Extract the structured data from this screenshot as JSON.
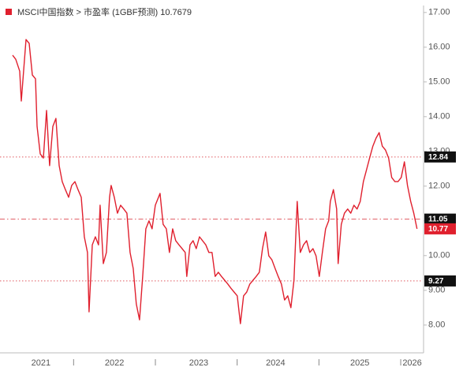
{
  "chart_data": {
    "type": "line",
    "x": [
      2021.254,
      2021.293,
      2021.341,
      2021.36,
      2021.418,
      2021.457,
      2021.495,
      2021.534,
      2021.553,
      2021.592,
      2021.63,
      2021.669,
      2021.707,
      2021.746,
      2021.784,
      2021.823,
      2021.861,
      2021.9,
      2021.939,
      2021.977,
      2022.016,
      2022.054,
      2022.093,
      2022.131,
      2022.17,
      2022.189,
      2022.228,
      2022.266,
      2022.305,
      2022.324,
      2022.363,
      2022.401,
      2022.44,
      2022.459,
      2022.498,
      2022.536,
      2022.575,
      2022.613,
      2022.652,
      2022.69,
      2022.729,
      2022.767,
      2022.806,
      2022.845,
      2022.883,
      2022.922,
      2022.96,
      2022.999,
      2023.057,
      2023.095,
      2023.134,
      2023.172,
      2023.211,
      2023.249,
      2023.288,
      2023.327,
      2023.365,
      2023.384,
      2023.423,
      2023.461,
      2023.5,
      2023.539,
      2023.577,
      2023.616,
      2023.654,
      2023.693,
      2023.731,
      2023.77,
      2023.808,
      2023.847,
      2023.886,
      2023.924,
      2023.963,
      2024.001,
      2024.04,
      2024.078,
      2024.117,
      2024.155,
      2024.194,
      2024.233,
      2024.271,
      2024.31,
      2024.348,
      2024.387,
      2024.425,
      2024.464,
      2024.502,
      2024.541,
      2024.58,
      2024.618,
      2024.657,
      2024.695,
      2024.734,
      2024.772,
      2024.811,
      2024.849,
      2024.888,
      2024.927,
      2024.965,
      2025.004,
      2025.042,
      2025.081,
      2025.119,
      2025.139,
      2025.177,
      2025.216,
      2025.235,
      2025.273,
      2025.312,
      2025.351,
      2025.389,
      2025.428,
      2025.466,
      2025.505,
      2025.543,
      2025.582,
      2025.62,
      2025.659,
      2025.698,
      2025.736,
      2025.775,
      2025.813,
      2025.852,
      2025.89,
      2025.929,
      2025.967,
      2026.006,
      2026.045,
      2026.083,
      2026.122,
      2026.16,
      2026.199
    ],
    "series": [
      {
        "name": "MSCI中国指数 > 市盈率 (1GBF预测) 10.7679",
        "color": "#e0202e",
        "values": [
          15.77,
          15.65,
          15.31,
          14.45,
          16.22,
          16.11,
          15.2,
          15.09,
          13.72,
          12.93,
          12.81,
          14.18,
          12.59,
          13.72,
          13.95,
          12.59,
          12.13,
          11.9,
          11.68,
          12.02,
          12.13,
          11.9,
          11.68,
          10.54,
          10.09,
          8.38,
          10.31,
          10.54,
          10.31,
          11.45,
          9.77,
          10.09,
          11.68,
          12.02,
          11.68,
          11.22,
          11.45,
          11.34,
          11.22,
          10.09,
          9.63,
          8.61,
          8.15,
          9.4,
          10.77,
          11.0,
          10.77,
          11.45,
          11.79,
          10.9,
          10.77,
          10.09,
          10.77,
          10.43,
          10.31,
          10.2,
          10.09,
          9.4,
          10.31,
          10.43,
          10.2,
          10.54,
          10.43,
          10.31,
          10.09,
          10.09,
          9.4,
          9.52,
          9.4,
          9.29,
          9.18,
          9.06,
          8.95,
          8.84,
          8.04,
          8.84,
          8.95,
          9.18,
          9.29,
          9.4,
          9.52,
          10.2,
          10.68,
          9.99,
          9.88,
          9.63,
          9.4,
          9.18,
          8.72,
          8.84,
          8.5,
          9.29,
          11.56,
          10.09,
          10.31,
          10.43,
          10.09,
          10.2,
          9.99,
          9.4,
          10.09,
          10.77,
          11.0,
          11.56,
          11.9,
          11.34,
          9.77,
          10.9,
          11.22,
          11.34,
          11.22,
          11.45,
          11.34,
          11.56,
          12.13,
          12.47,
          12.81,
          13.15,
          13.38,
          13.54,
          13.15,
          13.04,
          12.81,
          12.25,
          12.13,
          12.13,
          12.25,
          12.7,
          12.02,
          11.56,
          11.22,
          10.77
        ]
      }
    ],
    "reference_lines": [
      {
        "value": 12.84,
        "style": "dotted"
      },
      {
        "value": 11.05,
        "style": "dashdot"
      },
      {
        "value": 9.27,
        "style": "dotted"
      }
    ],
    "xlim": [
      2021.1,
      2026.26
    ],
    "xticks": [
      {
        "value": 2021.6,
        "label": "2021"
      },
      {
        "value": 2022.5,
        "label": "2022"
      },
      {
        "value": 2023.53,
        "label": "2023"
      },
      {
        "value": 2024.47,
        "label": "2024"
      },
      {
        "value": 2025.5,
        "label": "2025"
      },
      {
        "value": 2026.14,
        "label": "2026"
      }
    ],
    "x_tick_marks": [
      2022,
      2023,
      2024,
      2025,
      2026
    ],
    "ylim": [
      7.2,
      17.2
    ],
    "yticks": [
      {
        "value": 8,
        "label": "8.00"
      },
      {
        "value": 9,
        "label": "9.00"
      },
      {
        "value": 10,
        "label": "10.00"
      },
      {
        "value": 11,
        "label": "11.00"
      },
      {
        "value": 12,
        "label": "12.00"
      },
      {
        "value": 13,
        "label": "13.00"
      },
      {
        "value": 14,
        "label": "14.00"
      },
      {
        "value": 15,
        "label": "15.00"
      },
      {
        "value": 16,
        "label": "16.00"
      },
      {
        "value": 17,
        "label": "17.00"
      }
    ]
  }
}
